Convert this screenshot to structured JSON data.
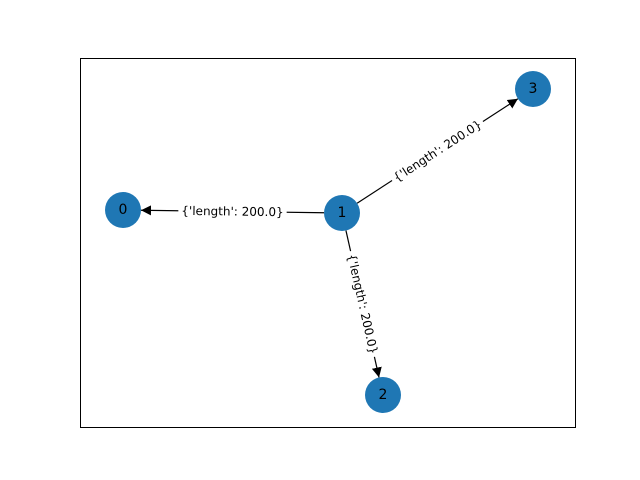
{
  "graph": {
    "node_color": "#1f77b4",
    "edge_color": "#000000",
    "directed": true,
    "nodes": [
      {
        "id": "0",
        "label": "0"
      },
      {
        "id": "1",
        "label": "1"
      },
      {
        "id": "2",
        "label": "2"
      },
      {
        "id": "3",
        "label": "3"
      }
    ],
    "edges": [
      {
        "source": "1",
        "target": "0",
        "label": "{'length': 200.0}"
      },
      {
        "source": "1",
        "target": "2",
        "label": "{'length': 200.0}"
      },
      {
        "source": "1",
        "target": "3",
        "label": "{'length': 200.0}"
      }
    ]
  }
}
